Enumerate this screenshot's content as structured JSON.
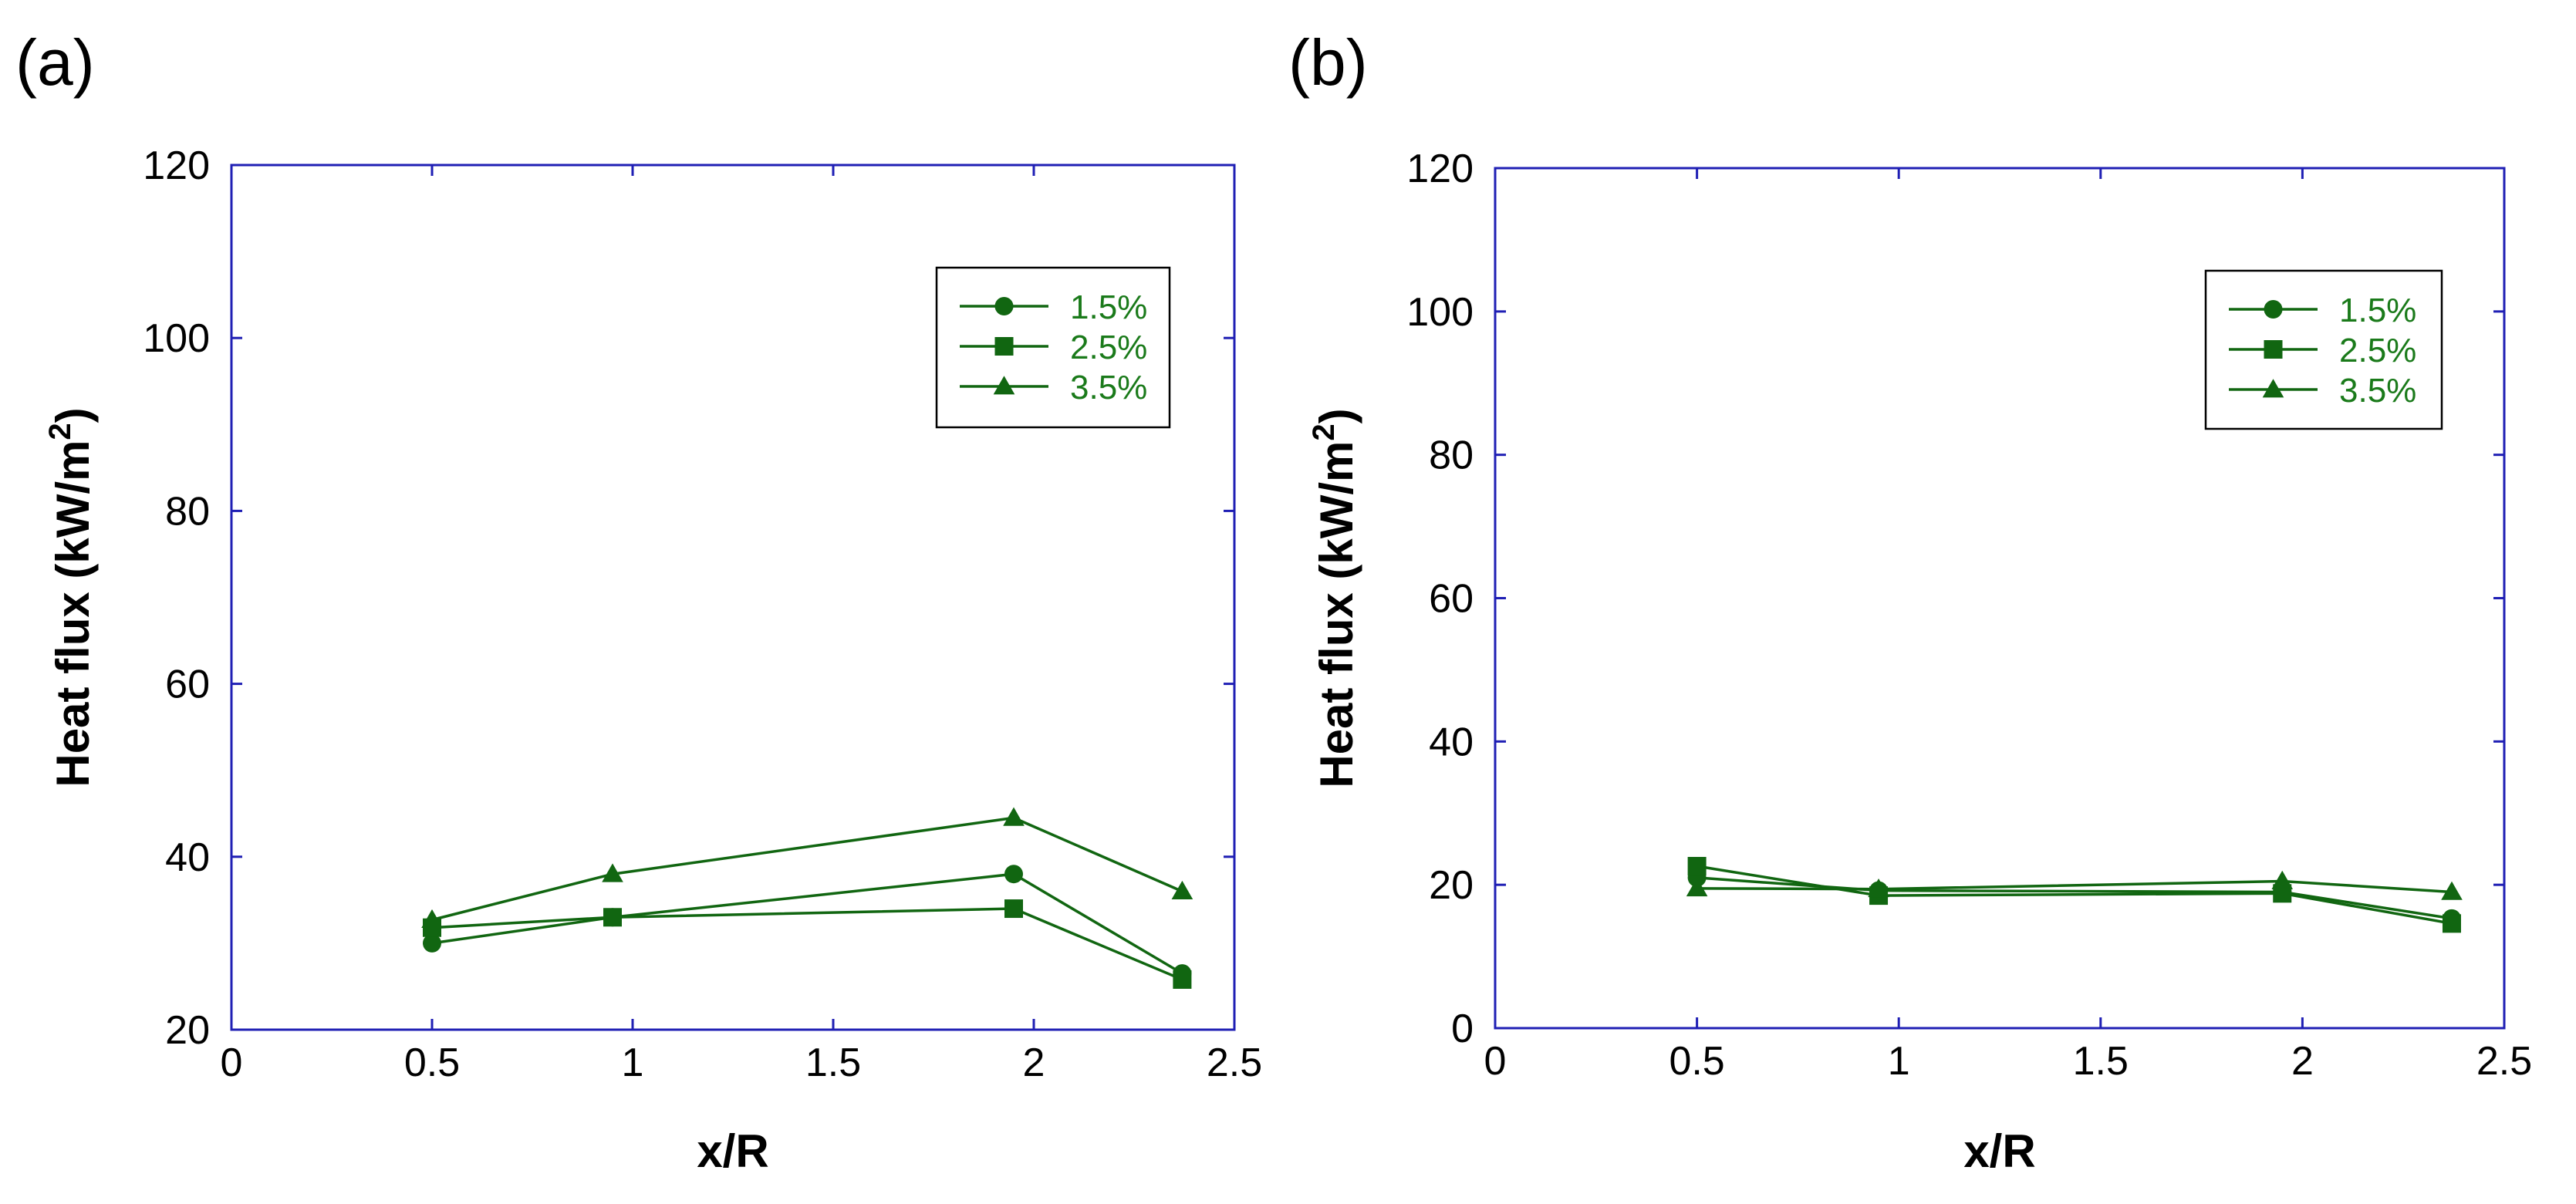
{
  "chart_data": [
    {
      "type": "line",
      "panel_label": "(a)",
      "xlabel": "x/R",
      "ylabel_main": "Heat flux (kW/m",
      "ylabel_sup": "2",
      "ylabel_close": ")",
      "xlim": [
        0,
        2.5
      ],
      "ylim": [
        20,
        120
      ],
      "xticks": [
        0,
        0.5,
        1,
        1.5,
        2,
        2.5
      ],
      "xtick_labels": [
        "0",
        "0.5",
        "1",
        "1.5",
        "2",
        "2.5"
      ],
      "yticks": [
        20,
        40,
        60,
        80,
        100,
        120
      ],
      "ytick_labels": [
        "20",
        "40",
        "60",
        "80",
        "100",
        "120"
      ],
      "legend_position": "top-right",
      "x": [
        0.5,
        0.95,
        1.95,
        2.37
      ],
      "series": [
        {
          "name": "1.5%",
          "marker": "circle",
          "values": [
            30,
            33,
            38,
            26.5
          ]
        },
        {
          "name": "2.5%",
          "marker": "square",
          "values": [
            31.8,
            33,
            34,
            25.8
          ]
        },
        {
          "name": "3.5%",
          "marker": "triangle",
          "values": [
            32.7,
            38,
            44.5,
            36
          ]
        }
      ]
    },
    {
      "type": "line",
      "panel_label": "(b)",
      "xlabel": "x/R",
      "ylabel_main": "Heat flux (kW/m",
      "ylabel_sup": "2",
      "ylabel_close": ")",
      "xlim": [
        0,
        2.5
      ],
      "ylim": [
        0,
        120
      ],
      "xticks": [
        0,
        0.5,
        1,
        1.5,
        2,
        2.5
      ],
      "xtick_labels": [
        "0",
        "0.5",
        "1",
        "1.5",
        "2",
        "2.5"
      ],
      "yticks": [
        0,
        20,
        40,
        60,
        80,
        100,
        120
      ],
      "ytick_labels": [
        "0",
        "20",
        "40",
        "60",
        "80",
        "100",
        "120"
      ],
      "legend_position": "top-right",
      "x": [
        0.5,
        0.95,
        1.95,
        2.37
      ],
      "series": [
        {
          "name": "1.5%",
          "marker": "circle",
          "values": [
            21,
            19.2,
            19,
            15.3
          ]
        },
        {
          "name": "2.5%",
          "marker": "square",
          "values": [
            22.6,
            18.5,
            18.8,
            14.6
          ]
        },
        {
          "name": "3.5%",
          "marker": "triangle",
          "values": [
            19.5,
            19.4,
            20.5,
            19
          ]
        }
      ]
    }
  ],
  "colors": {
    "axis": "#1f1fb4",
    "series": "#116611",
    "legend_text": "#1a7a1a",
    "text": "#000000"
  }
}
